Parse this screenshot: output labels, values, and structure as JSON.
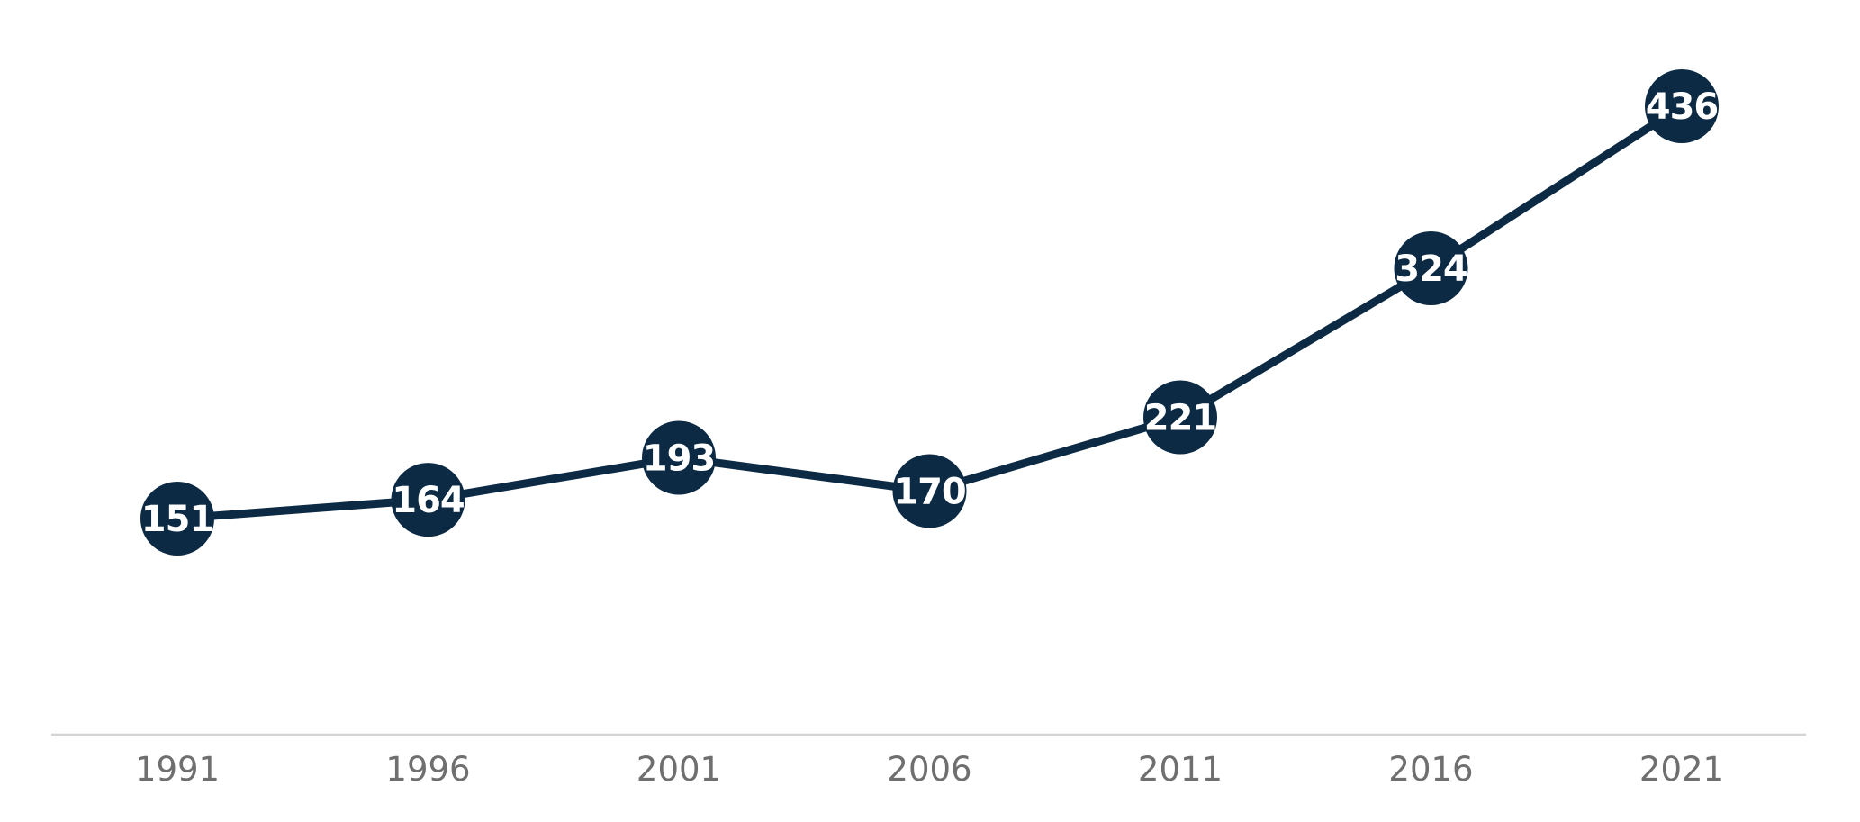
{
  "chart_data": {
    "type": "line",
    "categories": [
      "1991",
      "1996",
      "2001",
      "2006",
      "2011",
      "2016",
      "2021"
    ],
    "values": [
      151,
      164,
      193,
      170,
      221,
      324,
      436
    ],
    "data_labels": [
      "151",
      "164",
      "193",
      "170",
      "221",
      "324",
      "436"
    ],
    "title": "",
    "xlabel": "",
    "ylabel": "",
    "grid": false,
    "legend": "none"
  },
  "colors": {
    "series": "#0c2a44",
    "point_text": "#ffffff",
    "tick_text": "#6f6f6f",
    "baseline": "#d4d4d4",
    "background": "#ffffff"
  }
}
